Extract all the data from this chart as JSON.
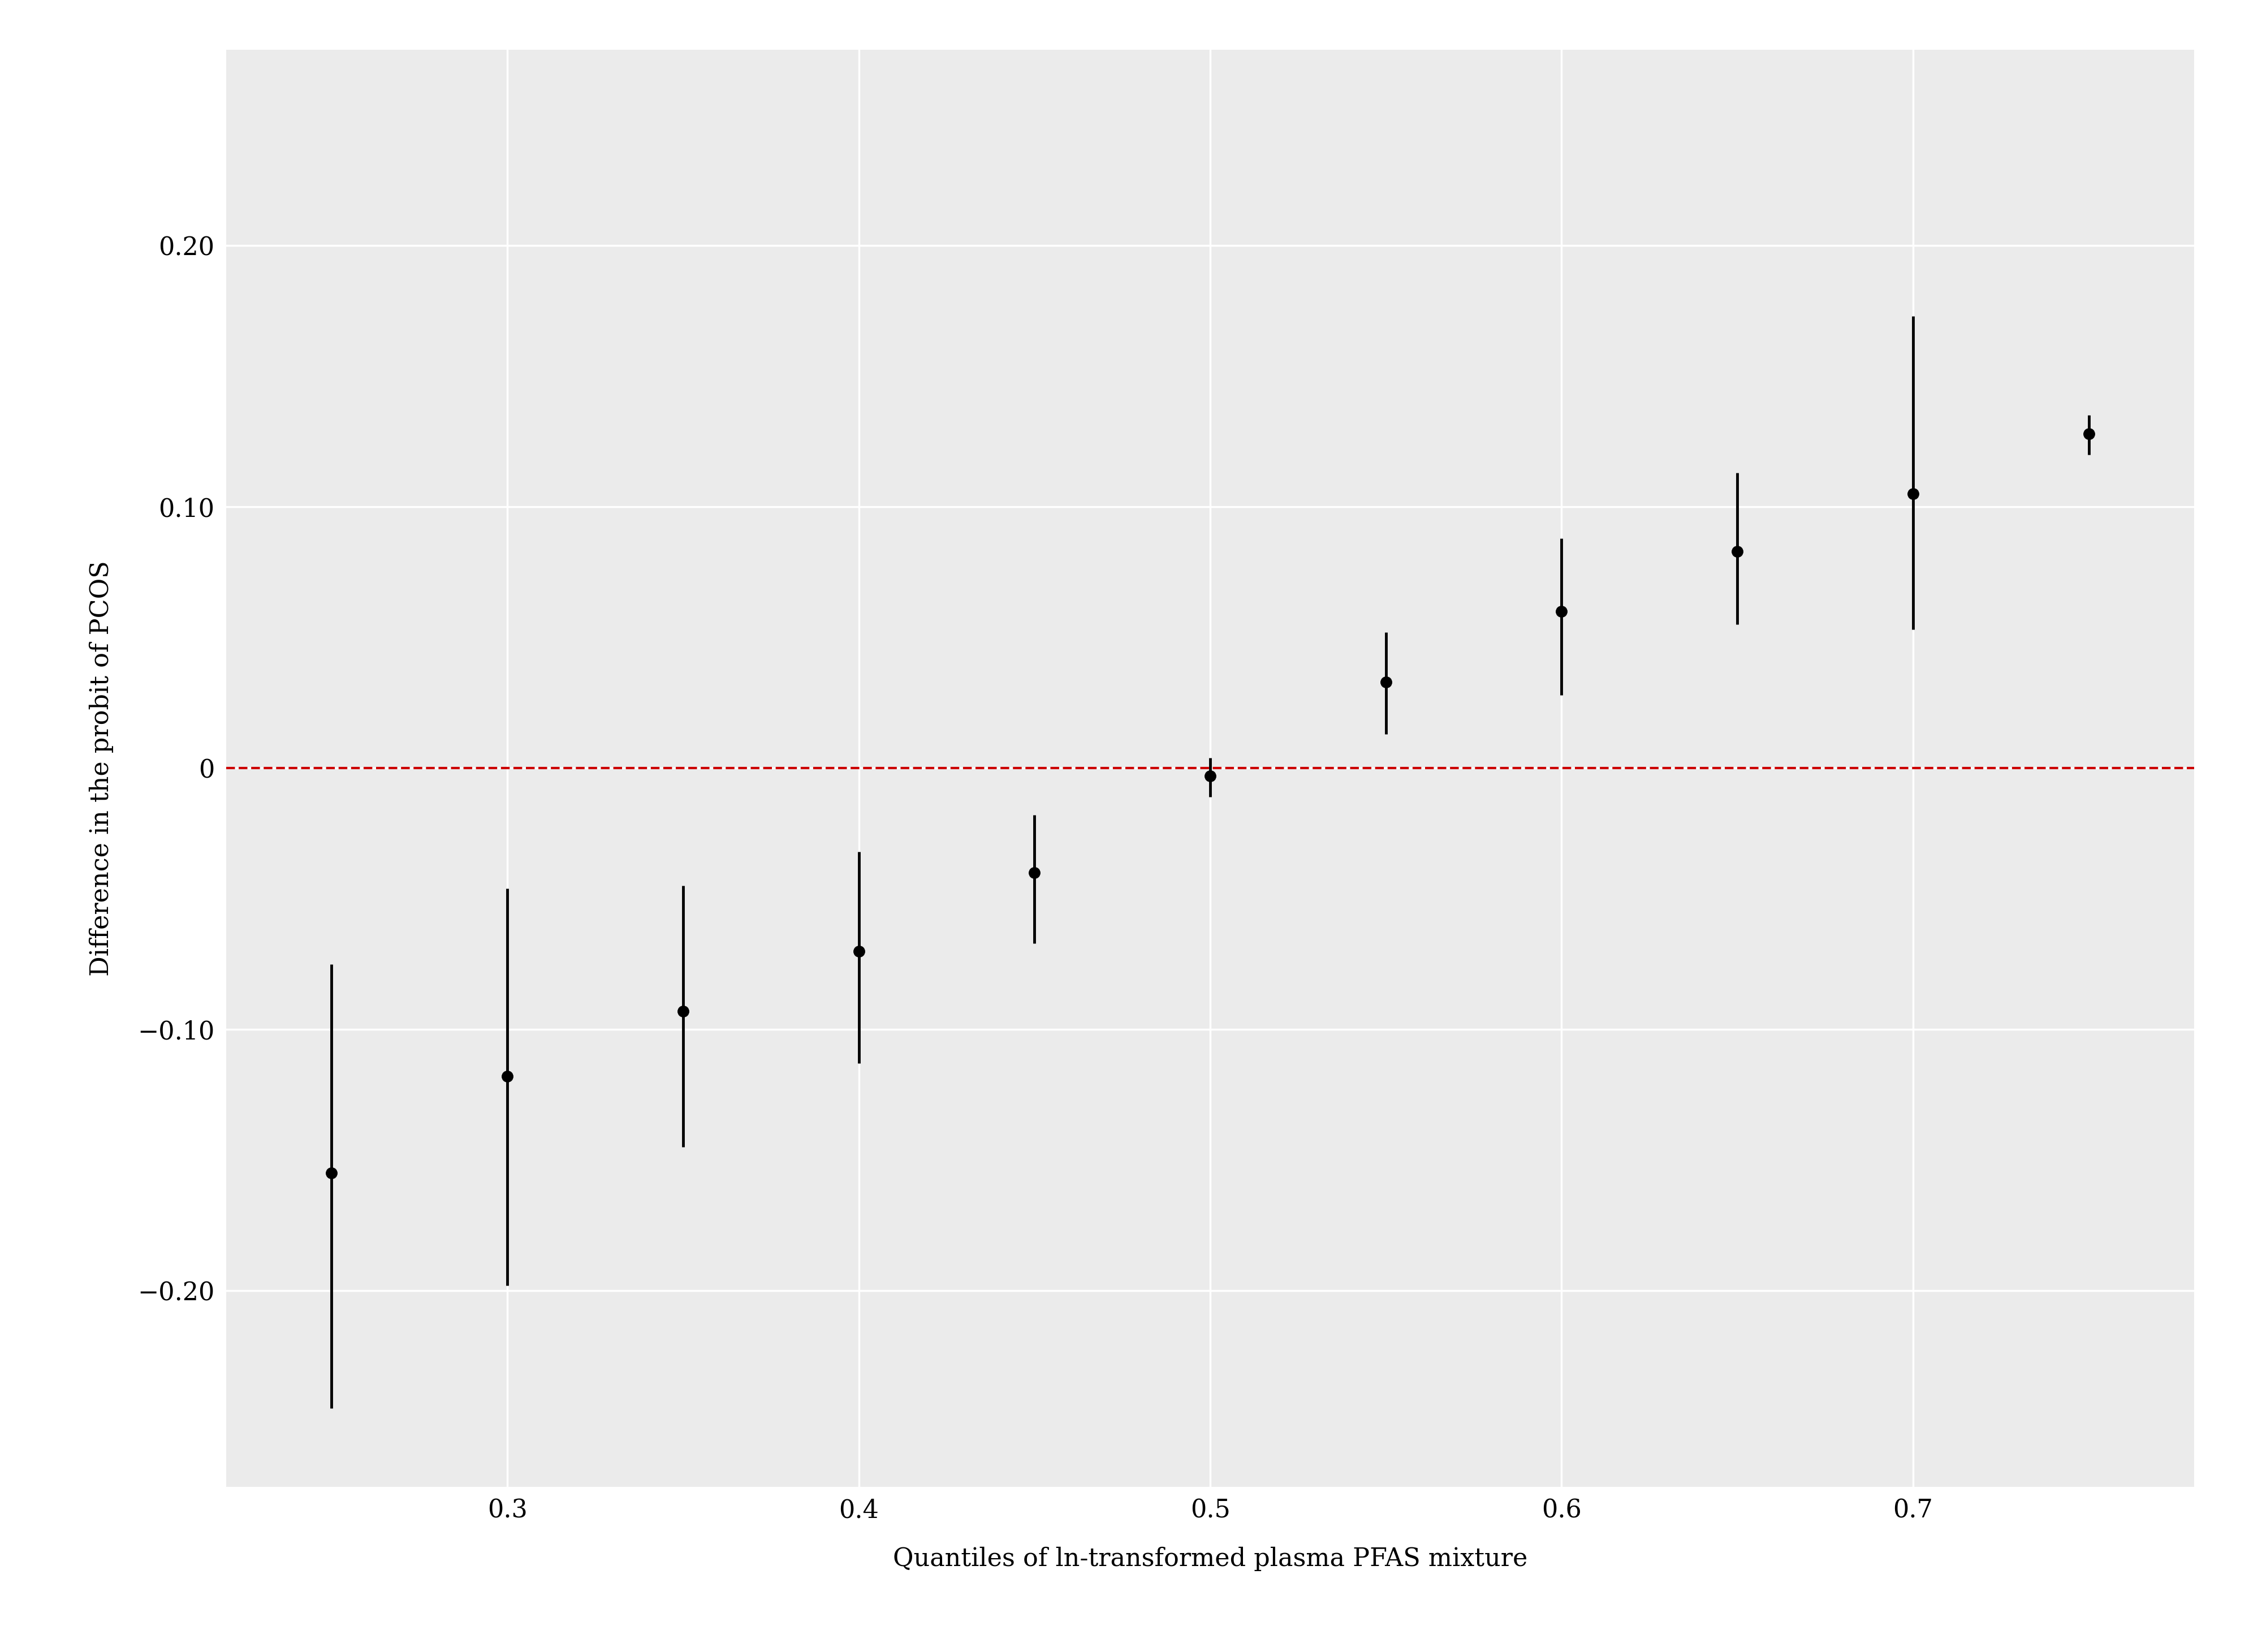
{
  "x": [
    0.25,
    0.3,
    0.35,
    0.4,
    0.45,
    0.5,
    0.55,
    0.6,
    0.65,
    0.7,
    0.75
  ],
  "y": [
    -0.155,
    -0.118,
    -0.093,
    -0.07,
    -0.04,
    -0.003,
    0.033,
    0.06,
    0.083,
    0.105,
    0.128
  ],
  "yerr_lower": [
    0.09,
    0.08,
    0.052,
    0.043,
    0.027,
    0.008,
    0.02,
    0.032,
    0.028,
    0.052,
    0.008
  ],
  "yerr_upper": [
    0.08,
    0.072,
    0.048,
    0.038,
    0.022,
    0.007,
    0.019,
    0.028,
    0.03,
    0.068,
    0.007
  ],
  "xlabel": "Quantiles of ln-transformed plasma PFAS mixture",
  "ylabel": "Difference in the probit of PCOS",
  "xlim": [
    0.22,
    0.78
  ],
  "ylim": [
    -0.275,
    0.275
  ],
  "yticks": [
    0.2,
    0.1,
    0.0,
    -0.1,
    -0.2
  ],
  "ytick_labels": [
    "0.20",
    "0.10",
    "0",
    "−0.10",
    "−0.20"
  ],
  "xticks": [
    0.3,
    0.4,
    0.5,
    0.6,
    0.7
  ],
  "xtick_labels": [
    "0.3",
    "0.4",
    "0.5",
    "0.6",
    "0.7"
  ],
  "background_color": "#EBEBEB",
  "grid_color": "#FFFFFF",
  "hline_color": "#CC0000",
  "xlabel_fontsize": 32,
  "ylabel_fontsize": 32,
  "tick_fontsize": 32,
  "marker_size": 14,
  "elinewidth": 3.5,
  "hline_linewidth": 3.0
}
